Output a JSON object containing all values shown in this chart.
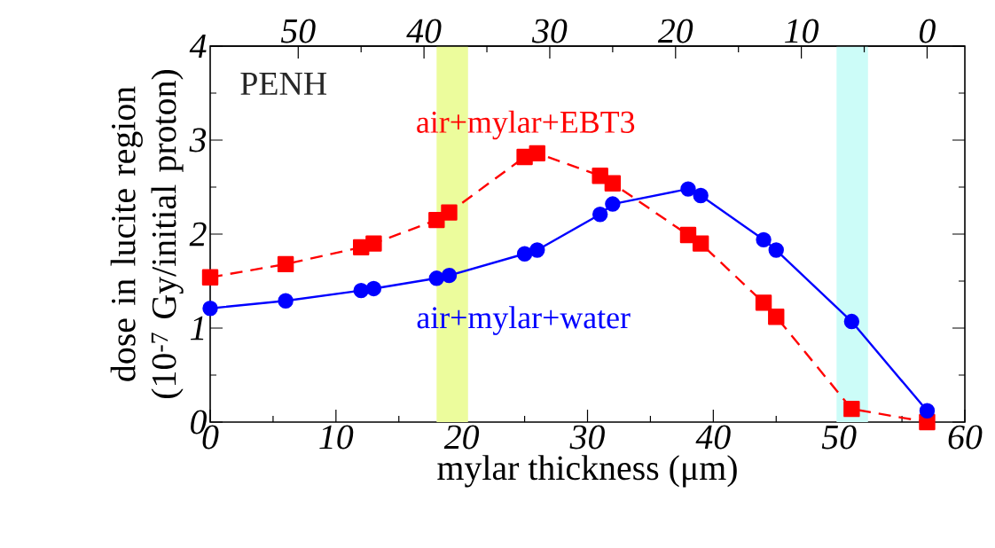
{
  "chart_data": {
    "type": "line",
    "xlabel": "mylar thickness (μm)",
    "ylabel": "dose in lucite region (10$^{-7}$ Gy/initial proton)",
    "xlim": [
      0,
      60
    ],
    "xticks": [
      0,
      10,
      20,
      30,
      40,
      50,
      60
    ],
    "ylim": [
      0,
      4
    ],
    "yticks": [
      0,
      1,
      2,
      3,
      4
    ],
    "x2lim": [
      57,
      -3
    ],
    "x2ticks": [
      50,
      40,
      30,
      20,
      10,
      0
    ],
    "annotations": [
      "PENH"
    ],
    "legend": false,
    "grid": false,
    "bands": [
      {
        "axis": "x",
        "from": 18,
        "to": 20.5,
        "color": "#ecfc9c"
      },
      {
        "axis": "x",
        "from": 49.8,
        "to": 52.3,
        "color": "#ccfcf8"
      }
    ],
    "series": [
      {
        "name": "air+mylar+EBT3",
        "color": "#ff0000",
        "marker": "square",
        "line_style": "dashed",
        "x": [
          0,
          6,
          12,
          13,
          18,
          19,
          25,
          26,
          31,
          32,
          38,
          39,
          44,
          45,
          51,
          57
        ],
        "values": [
          1.54,
          1.68,
          1.86,
          1.9,
          2.15,
          2.23,
          2.82,
          2.86,
          2.62,
          2.54,
          1.99,
          1.9,
          1.27,
          1.12,
          0.14,
          0.0
        ]
      },
      {
        "name": "air+mylar+water",
        "color": "#0000ff",
        "marker": "circle",
        "line_style": "solid",
        "x": [
          0,
          6,
          12,
          13,
          18,
          19,
          25,
          26,
          31,
          32,
          38,
          39,
          44,
          45,
          51,
          57
        ],
        "values": [
          1.21,
          1.29,
          1.4,
          1.42,
          1.53,
          1.56,
          1.79,
          1.83,
          2.21,
          2.32,
          2.48,
          2.41,
          1.94,
          1.83,
          1.07,
          0.12
        ]
      }
    ]
  }
}
